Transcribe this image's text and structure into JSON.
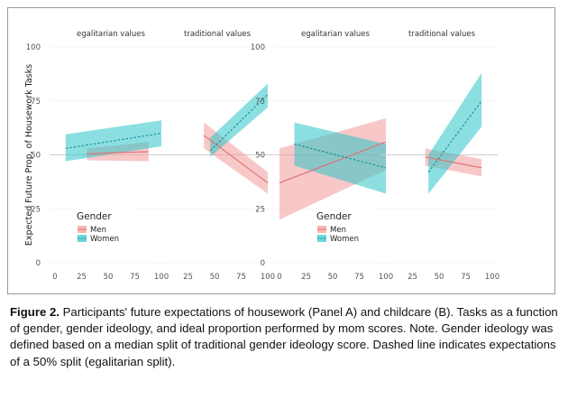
{
  "chart_data": {
    "type": "line",
    "ylabel": "Expected Future Prop. of Housework Tasks",
    "panels": [
      {
        "facets": [
          {
            "title": "egalitarian values",
            "x_ticks": [
              "0",
              "25",
              "50",
              "75",
              "100"
            ],
            "series": [
              {
                "name": "Men",
                "x": [
                  30,
                  88
                ],
                "y": [
                  50.5,
                  51.5
                ],
                "ci_low": [
                  47.5,
                  47
                ],
                "ci_high": [
                  53,
                  56
                ]
              },
              {
                "name": "Women",
                "x": [
                  10,
                  100
                ],
                "y": [
                  53,
                  60
                ],
                "ci_low": [
                  47,
                  54
                ],
                "ci_high": [
                  59.5,
                  66
                ]
              }
            ]
          },
          {
            "title": "traditional values",
            "x_ticks": [
              "0",
              "25",
              "50",
              "75",
              "100"
            ],
            "series": [
              {
                "name": "Men",
                "x": [
                  40,
                  100
                ],
                "y": [
                  59,
                  37
                ],
                "ci_low": [
                  53,
                  32
                ],
                "ci_high": [
                  65,
                  42
                ]
              },
              {
                "name": "Women",
                "x": [
                  46,
                  100
                ],
                "y": [
                  52,
                  78
                ],
                "ci_low": [
                  49,
                  72
                ],
                "ci_high": [
                  58,
                  83
                ]
              }
            ]
          }
        ]
      },
      {
        "facets": [
          {
            "title": "egalitarian values",
            "x_ticks": [
              "0",
              "25",
              "50",
              "75",
              "100"
            ],
            "series": [
              {
                "name": "Men",
                "x": [
                  0,
                  100
                ],
                "y": [
                  37,
                  56
                ],
                "ci_low": [
                  20,
                  43
                ],
                "ci_high": [
                  53,
                  67
                ]
              },
              {
                "name": "Women",
                "x": [
                  14,
                  100
                ],
                "y": [
                  55,
                  44
                ],
                "ci_low": [
                  45,
                  32
                ],
                "ci_high": [
                  65,
                  55
                ]
              }
            ]
          },
          {
            "title": "traditional values",
            "x_ticks": [
              "0",
              "25",
              "50",
              "75",
              "100"
            ],
            "series": [
              {
                "name": "Men",
                "x": [
                  37,
                  90
                ],
                "y": [
                  49,
                  44
                ],
                "ci_low": [
                  45,
                  40
                ],
                "ci_high": [
                  53,
                  48
                ]
              },
              {
                "name": "Women",
                "x": [
                  40,
                  90
                ],
                "y": [
                  42,
                  75
                ],
                "ci_low": [
                  32,
                  63
                ],
                "ci_high": [
                  50,
                  88
                ]
              }
            ]
          }
        ]
      }
    ],
    "y_ticks": [
      "0",
      "25",
      "50",
      "75",
      "100"
    ],
    "xlim": [
      0,
      100
    ],
    "ylim": [
      0,
      100
    ],
    "reference_line": 50,
    "legend": {
      "title": "Gender",
      "entries": [
        "Men",
        "Women"
      ],
      "placement": "bottom-left"
    },
    "colors": {
      "Men": "#f29a9a",
      "Women": "#2ec4c9",
      "ref_line": "#cfcfcf"
    }
  },
  "caption": {
    "lead": "Figure 2.",
    "text": "Participants' future expectations of housework (Panel A) and childcare (B). Tasks as a function of gender, gender ideology, and ideal proportion performed by mom scores. Note. Gender ideology was defined based on a median split of traditional gender ideology score. Dashed line indicates expectations of a 50% split (egalitarian split)."
  }
}
